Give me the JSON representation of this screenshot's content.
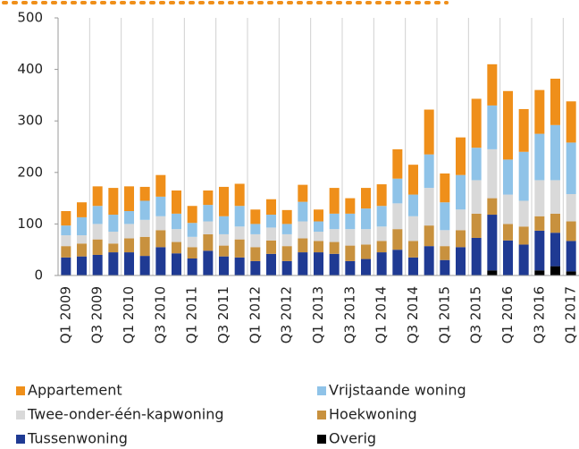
{
  "chart_data": {
    "type": "stacked_bar",
    "categories": [
      "Q1 2009",
      null,
      "Q3 2009",
      null,
      "Q1 2010",
      null,
      "Q3 2010",
      null,
      "Q1 2011",
      null,
      "Q3 2011",
      null,
      "Q1 2012",
      null,
      "Q3 2012",
      null,
      "Q1 2013",
      null,
      "Q3 2013",
      null,
      "Q1 2014",
      null,
      "Q3 2014",
      null,
      "Q1 2015",
      null,
      "Q3 2015",
      null,
      "Q1 2016",
      null,
      "Q3 2016",
      null,
      "Q1 2017"
    ],
    "series": [
      {
        "name": "Appartement",
        "color": "#ef8f1a",
        "values": [
          28,
          29,
          38,
          52,
          48,
          27,
          42,
          45,
          33,
          28,
          57,
          43,
          28,
          30,
          27,
          33,
          23,
          50,
          30,
          40,
          42,
          57,
          58,
          87,
          56,
          73,
          95,
          80,
          133,
          83,
          85,
          90,
          80
        ]
      },
      {
        "name": "Vrijstaande woning",
        "color": "#8fc3e8",
        "values": [
          19,
          35,
          35,
          33,
          25,
          37,
          38,
          30,
          27,
          32,
          35,
          40,
          20,
          25,
          20,
          38,
          20,
          30,
          30,
          40,
          40,
          48,
          42,
          65,
          54,
          67,
          63,
          85,
          68,
          95,
          90,
          107,
          100
        ]
      },
      {
        "name": "Twee-onder-één-kapwoning",
        "color": "#d9d9d9",
        "values": [
          21,
          16,
          30,
          23,
          28,
          33,
          27,
          25,
          20,
          25,
          22,
          25,
          25,
          25,
          23,
          33,
          18,
          25,
          32,
          30,
          28,
          50,
          48,
          73,
          31,
          40,
          65,
          95,
          57,
          50,
          70,
          65,
          53
        ]
      },
      {
        "name": "Hoekwoning",
        "color": "#c8913e",
        "values": [
          22,
          25,
          30,
          17,
          27,
          37,
          33,
          22,
          22,
          32,
          21,
          35,
          27,
          26,
          29,
          27,
          22,
          23,
          30,
          28,
          22,
          40,
          32,
          40,
          27,
          33,
          47,
          32,
          32,
          35,
          28,
          37,
          38
        ]
      },
      {
        "name": "Tussenwoning",
        "color": "#1f3a93",
        "values": [
          35,
          37,
          40,
          45,
          45,
          38,
          55,
          43,
          33,
          48,
          37,
          35,
          28,
          42,
          28,
          45,
          45,
          42,
          28,
          32,
          45,
          50,
          35,
          57,
          30,
          55,
          73,
          108,
          68,
          60,
          77,
          65,
          59
        ]
      },
      {
        "name": "Overig",
        "color": "#000000",
        "values": [
          0,
          0,
          0,
          0,
          0,
          0,
          0,
          0,
          0,
          0,
          0,
          0,
          0,
          0,
          0,
          0,
          0,
          0,
          0,
          0,
          0,
          0,
          0,
          0,
          0,
          0,
          0,
          10,
          0,
          0,
          10,
          18,
          8
        ]
      }
    ],
    "ylim": [
      0,
      500
    ],
    "yticks": [
      0,
      100,
      200,
      300,
      400,
      500
    ]
  }
}
